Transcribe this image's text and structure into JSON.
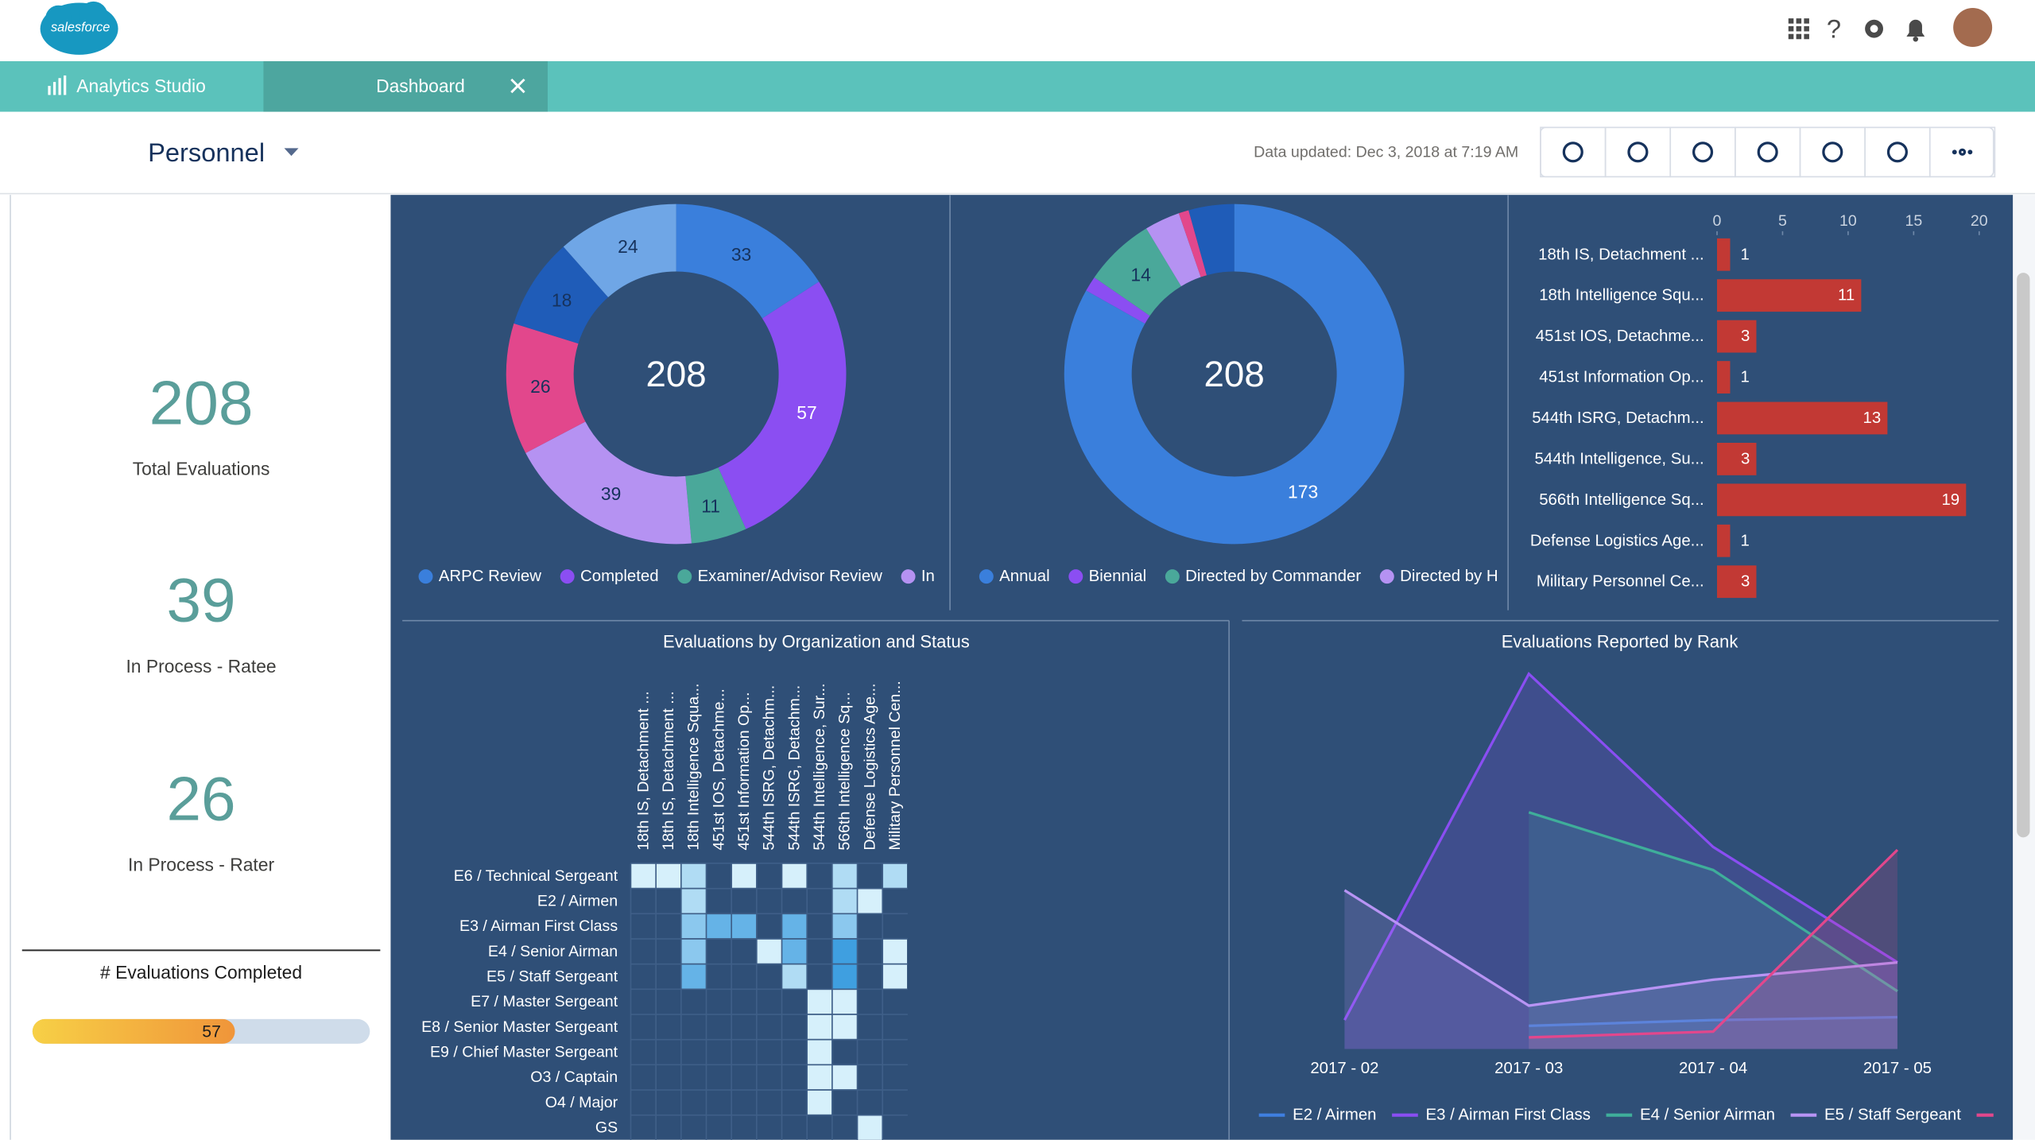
{
  "header": {
    "logo": "salesforce",
    "app_tab": "Analytics Studio",
    "dashboard_tab": "Dashboard",
    "dashboard_title": "Personnel",
    "data_updated": "Data updated: Dec 3, 2018 at 7:19 AM"
  },
  "kpis": [
    {
      "value": 208,
      "label": "Total Evaluations"
    },
    {
      "value": 39,
      "label": "In Process - Ratee"
    },
    {
      "value": 26,
      "label": "In Process - Rater"
    }
  ],
  "chart_data": [
    {
      "type": "donut",
      "total": 208,
      "categories": [
        "ARPC Review",
        "Completed",
        "Examiner/Advisor Review",
        "In Proc",
        null,
        null,
        null
      ],
      "values": [
        33,
        57,
        11,
        39,
        26,
        18,
        24
      ],
      "colors": [
        "#3a7fdc",
        "#8b4ef2",
        "#4aa89a",
        "#b592f2",
        "#e2478c",
        "#1f5cb8",
        "#6fa6e6"
      ]
    },
    {
      "type": "donut",
      "total": 208,
      "categories": [
        "Annual",
        "Biennial",
        "Directed by Commander",
        "Directed by HAF",
        null,
        null
      ],
      "values": [
        173,
        3,
        14,
        7,
        2,
        9
      ],
      "colors": [
        "#3a7fdc",
        "#8b4ef2",
        "#4aa89a",
        "#b592f2",
        "#e2478c",
        "#1f5cb8"
      ]
    },
    {
      "type": "hbar",
      "categories": [
        "18th IS, Detachment ...",
        "18th Intelligence Squ...",
        "451st IOS, Detachme...",
        "451st Information Op...",
        "544th ISRG, Detachm...",
        "544th Intelligence, Su...",
        "566th Intelligence Sq...",
        "Defense Logistics Age...",
        "Military Personnel Ce..."
      ],
      "values": [
        1,
        11,
        3,
        1,
        13,
        3,
        19,
        1,
        3
      ],
      "xlim": [
        0,
        20
      ],
      "xticks": [
        0,
        5,
        10,
        15,
        20
      ],
      "color": "#c23934"
    },
    {
      "type": "progress",
      "title": "# Evaluations Completed",
      "values": [
        57
      ],
      "xlim": [
        0,
        95
      ],
      "colors": [
        "#f7d046",
        "#f0953a"
      ]
    },
    {
      "type": "heatmap",
      "title": "Evaluations by Organization and Status",
      "x": [
        "18th IS, Detachment ...",
        "18th IS, Detachment ...",
        "18th Intelligence Squa...",
        "451st IOS, Detachme...",
        "451st Information Op...",
        "544th ISRG, Detachm...",
        "544th ISRG, Detachm...",
        "544th Intelligence, Sur...",
        "566th Intelligence Sq...",
        "Defense Logistics Age...",
        "Military Personnel Cen..."
      ],
      "y": [
        "E6 / Technical Sergeant",
        "E2 / Airmen",
        "E3 / Airman First Class",
        "E4 / Senior Airman",
        "E5 / Staff Sergeant",
        "E7 / Master Sergeant",
        "E8 / Senior Master Sergeant",
        "E9 / Chief Master Sergeant",
        "O3 / Captain",
        "O4 / Major",
        "GS"
      ],
      "values": [
        [
          1,
          1,
          2,
          null,
          1,
          null,
          1,
          null,
          2,
          null,
          2
        ],
        [
          null,
          null,
          2,
          null,
          null,
          null,
          null,
          null,
          2,
          1,
          null
        ],
        [
          null,
          null,
          3,
          4,
          4,
          null,
          4,
          null,
          3,
          null,
          null
        ],
        [
          null,
          null,
          3,
          null,
          null,
          1,
          4,
          null,
          5,
          null,
          1
        ],
        [
          null,
          null,
          4,
          null,
          null,
          null,
          2,
          null,
          5,
          null,
          1
        ],
        [
          null,
          null,
          null,
          null,
          null,
          null,
          null,
          1,
          1,
          null,
          null
        ],
        [
          null,
          null,
          null,
          null,
          null,
          null,
          null,
          1,
          1,
          null,
          null
        ],
        [
          null,
          null,
          null,
          null,
          null,
          null,
          null,
          1,
          null,
          null,
          null
        ],
        [
          null,
          null,
          null,
          null,
          null,
          null,
          null,
          1,
          1,
          null,
          null
        ],
        [
          null,
          null,
          null,
          null,
          null,
          null,
          null,
          1,
          null,
          null,
          null
        ],
        [
          null,
          null,
          null,
          null,
          null,
          null,
          null,
          null,
          null,
          1,
          null
        ]
      ],
      "colors": [
        "#d6f0fb",
        "#3f9fe0"
      ]
    },
    {
      "type": "area",
      "title": "Evaluations Reported by Rank",
      "categories": [
        "2017 - 02",
        "2017 - 03",
        "2017 - 04",
        "2017 - 05"
      ],
      "ylim": [
        0,
        13
      ],
      "series": [
        {
          "name": "E2 / Airmen",
          "color": "#3f7fe0",
          "values": [
            null,
            0.8,
            1,
            1.1
          ]
        },
        {
          "name": "E3 / Airman First Class",
          "color": "#8a4ef2",
          "values": [
            1,
            13,
            7,
            3
          ]
        },
        {
          "name": "E4 / Senior Airman",
          "color": "#3fae9a",
          "values": [
            null,
            8.2,
            6.2,
            2
          ]
        },
        {
          "name": "E5 / Staff Sergeant",
          "color": "#b894f4",
          "values": [
            5.5,
            1.5,
            2.4,
            3
          ]
        },
        {
          "name": null,
          "color": "#e2478c",
          "values": [
            null,
            0.4,
            0.6,
            6.9
          ]
        }
      ]
    }
  ]
}
